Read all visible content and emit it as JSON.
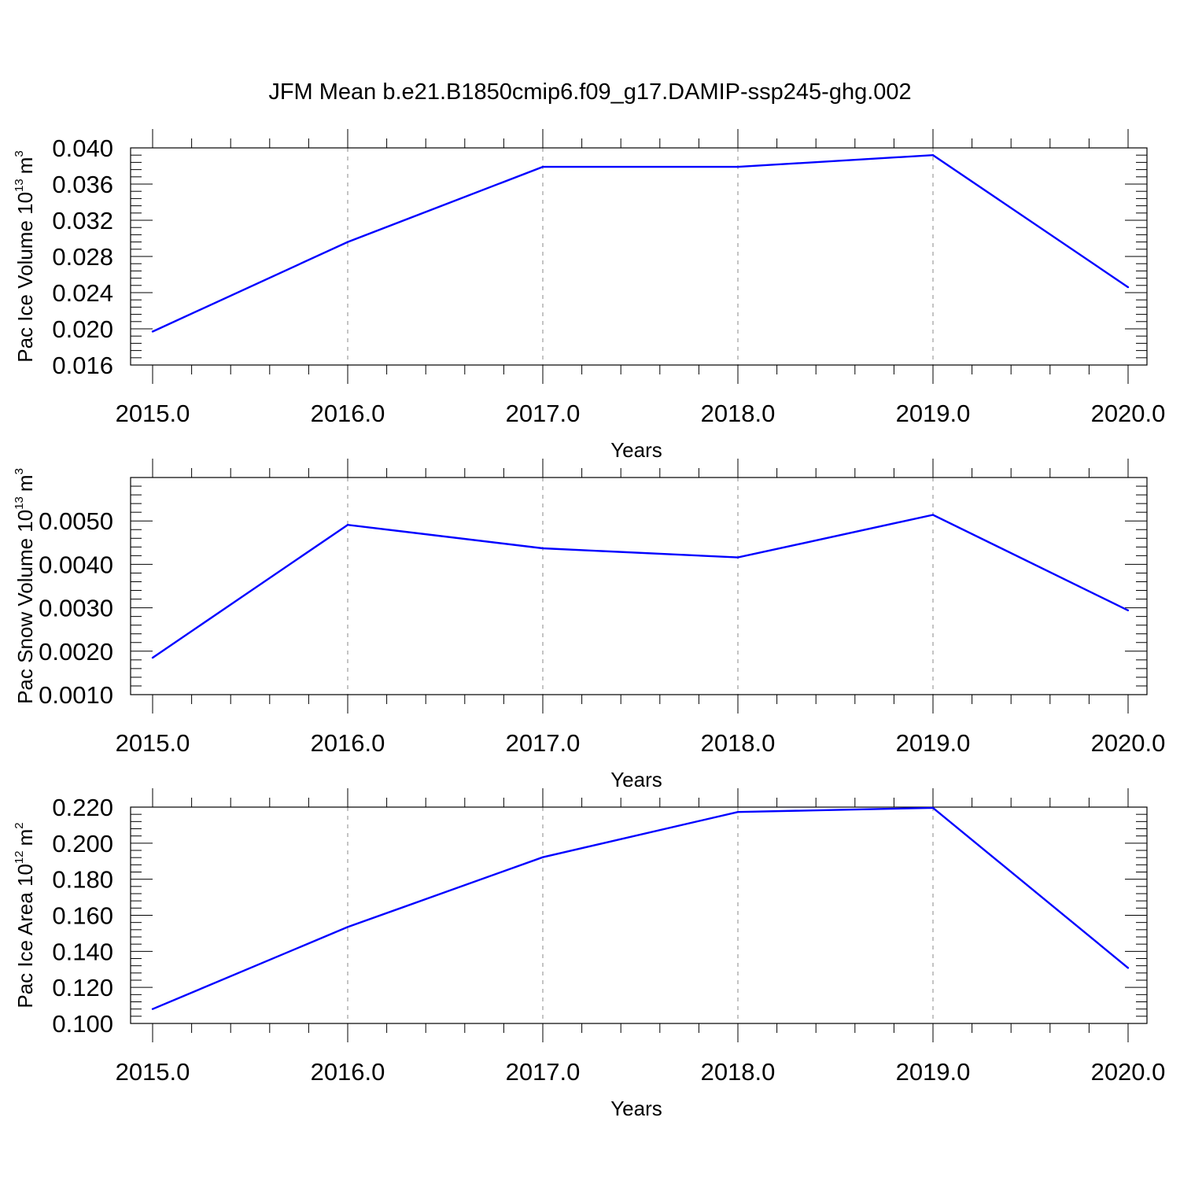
{
  "title": "JFM Mean b.e21.B1850cmip6.f09_g17.DAMIP-ssp245-ghg.002",
  "colors": {
    "series": "#0000ff",
    "axis": "#000000",
    "grid": "#888888"
  },
  "chart_data": [
    {
      "type": "line",
      "xlabel": "Years",
      "ylabel": {
        "text": "Pac Ice Volume 10",
        "exp": "13",
        "unit": "m",
        "unit_exp": "3"
      },
      "x": [
        2015,
        2016,
        2017,
        2018,
        2019,
        2020
      ],
      "values": [
        0.0197,
        0.0296,
        0.0379,
        0.0379,
        0.0392,
        0.0246
      ],
      "xlim": [
        2015,
        2020
      ],
      "ylim": [
        0.016,
        0.04
      ],
      "xticks": [
        "2015.0",
        "2016.0",
        "2017.0",
        "2018.0",
        "2019.0",
        "2020.0"
      ],
      "yticks": [
        0.016,
        0.02,
        0.024,
        0.028,
        0.032,
        0.036,
        0.04
      ],
      "yticklabels": [
        "0.016",
        "0.020",
        "0.024",
        "0.028",
        "0.032",
        "0.036",
        "0.040"
      ],
      "grid": "vertical dashed at major x ticks"
    },
    {
      "type": "line",
      "xlabel": "Years",
      "ylabel": {
        "text": "Pac Snow Volume 10",
        "exp": "13",
        "unit": "m",
        "unit_exp": "3"
      },
      "x": [
        2015,
        2016,
        2017,
        2018,
        2019,
        2020
      ],
      "values": [
        0.00185,
        0.00491,
        0.00437,
        0.00416,
        0.00514,
        0.00294
      ],
      "xlim": [
        2015,
        2020
      ],
      "ylim": [
        0.001,
        0.006
      ],
      "xticks": [
        "2015.0",
        "2016.0",
        "2017.0",
        "2018.0",
        "2019.0",
        "2020.0"
      ],
      "yticks": [
        0.001,
        0.002,
        0.003,
        0.004,
        0.005
      ],
      "yticklabels": [
        "0.0010",
        "0.0020",
        "0.0030",
        "0.0040",
        "0.0050"
      ],
      "grid": "vertical dashed at major x ticks"
    },
    {
      "type": "line",
      "xlabel": "Years",
      "ylabel": {
        "text": "Pac Ice Area 10",
        "exp": "12",
        "unit": "m",
        "unit_exp": "2"
      },
      "x": [
        2015,
        2016,
        2017,
        2018,
        2019,
        2020
      ],
      "values": [
        0.108,
        0.1535,
        0.1922,
        0.2173,
        0.2196,
        0.1308
      ],
      "xlim": [
        2015,
        2020
      ],
      "ylim": [
        0.1,
        0.22
      ],
      "xticks": [
        "2015.0",
        "2016.0",
        "2017.0",
        "2018.0",
        "2019.0",
        "2020.0"
      ],
      "yticks": [
        0.1,
        0.12,
        0.14,
        0.16,
        0.18,
        0.2,
        0.22
      ],
      "yticklabels": [
        "0.100",
        "0.120",
        "0.140",
        "0.160",
        "0.180",
        "0.200",
        "0.220"
      ],
      "grid": "vertical dashed at major x ticks"
    }
  ]
}
